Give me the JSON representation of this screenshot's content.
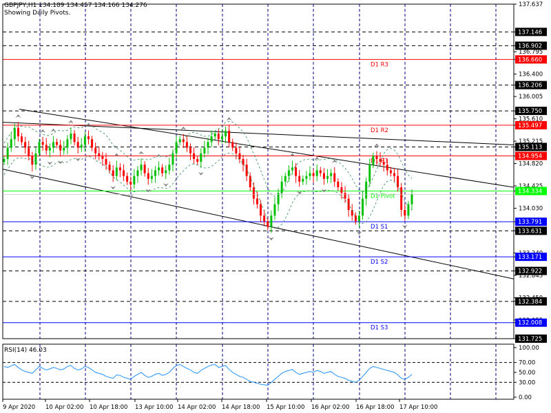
{
  "header": {
    "symbol_line": "GBPJPY,H1  134.189 134.457 134.166 134.276",
    "subtitle": "Showing Daily Pivots."
  },
  "rsi_header": "RSI(14) 46.03",
  "colors": {
    "bull": "#00c000",
    "bear": "#ff0000",
    "grid": "#000080",
    "resistance": "#ff0000",
    "support": "#0000ff",
    "pivot": "#00ff00",
    "rsi": "#1e90ff",
    "fractal": "#808080",
    "trendline": "#000000"
  },
  "chart_data": {
    "type": "line",
    "price_axis": {
      "ticks": [
        "137.637",
        "137.146",
        "136.902",
        "136.795",
        "136.660",
        "136.400",
        "136.206",
        "136.005",
        "135.750",
        "135.610",
        "135.497",
        "135.215",
        "135.113",
        "134.954",
        "134.820",
        "134.425",
        "134.334",
        "134.030",
        "133.791",
        "133.631",
        "133.240",
        "133.171",
        "132.922",
        "132.845",
        "132.450",
        "132.384",
        "132.055",
        "132.008",
        "131.725"
      ],
      "range": [
        131.725,
        137.637
      ]
    },
    "time_axis": {
      "labels": [
        "9 Apr 2020",
        "10 Apr 02:00",
        "10 Apr 18:00",
        "13 Apr 10:00",
        "14 Apr 02:00",
        "14 Apr 18:00",
        "15 Apr 10:00",
        "16 Apr 02:00",
        "16 Apr 18:00",
        "17 Apr 10:00"
      ]
    },
    "pivot_levels": [
      {
        "name": "D1 R3",
        "value": 136.66,
        "label": "136.660",
        "kind": "resistance"
      },
      {
        "name": "D1 R2",
        "value": 135.497,
        "label": "135.497",
        "kind": "resistance"
      },
      {
        "name": "D1 R1",
        "value": 134.954,
        "label": "134.954",
        "kind": "resistance"
      },
      {
        "name": "D1 Pivot",
        "value": 134.334,
        "label": "134.334",
        "kind": "pivot"
      },
      {
        "name": "D1 S1",
        "value": 133.791,
        "label": "133.791",
        "kind": "support"
      },
      {
        "name": "D1 S2",
        "value": 133.171,
        "label": "133.171",
        "kind": "support"
      },
      {
        "name": "D1 S3",
        "value": 132.008,
        "label": "132.008",
        "kind": "support"
      }
    ],
    "dashed_levels": [
      137.146,
      136.902,
      136.206,
      135.75,
      135.113,
      133.631,
      132.922,
      132.384,
      131.725
    ],
    "current_price": 134.276,
    "series": [
      {
        "values": [
          134.9,
          135.1,
          135.25,
          135.45,
          135.3,
          135.2,
          135.1,
          134.95,
          134.8,
          135.0,
          135.2,
          135.15,
          135.05,
          135.1,
          135.2,
          135.15,
          135.05,
          135.1,
          135.25,
          135.35,
          135.2,
          135.1,
          135.15,
          135.3,
          135.25,
          135.1,
          135.0,
          134.95,
          134.9,
          134.8,
          134.7,
          134.6,
          134.75,
          134.7,
          134.6,
          134.5,
          134.45,
          134.6,
          134.7,
          134.8,
          134.65,
          134.55,
          134.6,
          134.7,
          134.75,
          134.65,
          134.7,
          134.8,
          135.0,
          135.2,
          135.25,
          135.2,
          135.1,
          135.0,
          134.9,
          134.85,
          135.0,
          135.1,
          135.2,
          135.3,
          135.35,
          135.25,
          135.3,
          135.4,
          135.2,
          135.1,
          135.0,
          134.9,
          134.8,
          134.6,
          134.4,
          134.2,
          134.1,
          133.9,
          133.8,
          133.7,
          133.9,
          134.1,
          134.3,
          134.5,
          134.6,
          134.7,
          134.75,
          134.6,
          134.5,
          134.55,
          134.6,
          134.65,
          134.6,
          134.7,
          134.65,
          134.55,
          134.6,
          134.65,
          134.5,
          134.4,
          134.3,
          134.2,
          134.0,
          133.9,
          133.8,
          133.9,
          134.2,
          134.5,
          134.8,
          134.95,
          134.9,
          134.85,
          134.8,
          134.7,
          134.65,
          134.6,
          134.4,
          134.0,
          133.9,
          134.1,
          134.276
        ],
        "rsi": [
          62,
          60,
          63,
          66,
          60,
          55,
          52,
          50,
          48,
          55,
          62,
          58,
          55,
          57,
          60,
          58,
          55,
          57,
          62,
          64,
          58,
          55,
          57,
          62,
          60,
          55,
          50,
          48,
          46,
          42,
          40,
          38,
          45,
          44,
          40,
          38,
          36,
          42,
          46,
          50,
          44,
          40,
          42,
          46,
          48,
          44,
          46,
          50,
          58,
          64,
          66,
          62,
          58,
          55,
          50,
          48,
          54,
          58,
          62,
          65,
          66,
          60,
          62,
          64,
          56,
          50,
          46,
          42,
          40,
          36,
          32,
          30,
          28,
          26,
          25,
          24,
          30,
          36,
          42,
          48,
          52,
          54,
          56,
          50,
          46,
          48,
          50,
          52,
          50,
          54,
          52,
          48,
          50,
          52,
          46,
          42,
          40,
          38,
          34,
          32,
          30,
          34,
          42,
          50,
          58,
          62,
          60,
          58,
          56,
          54,
          52,
          50,
          45,
          38,
          36,
          40,
          46.03
        ]
      }
    ]
  },
  "rsi_axis": {
    "ticks": [
      "100.00",
      "70.00",
      "50.00",
      "30.00",
      "0.00"
    ],
    "level_values": [
      100,
      70,
      50,
      30,
      0
    ],
    "dashed_levels": [
      70,
      30
    ]
  }
}
